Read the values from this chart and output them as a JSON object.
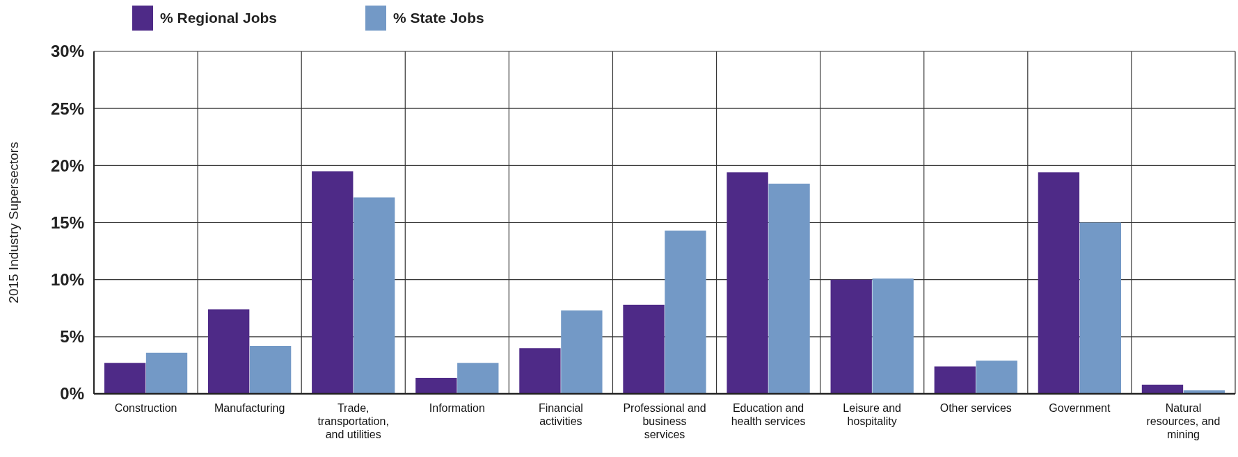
{
  "chart_data": {
    "type": "bar",
    "ylabel": "2015 Industry Supersectors",
    "categories": [
      "Construction",
      "Manufacturing",
      "Trade, transportation, and utilities",
      "Information",
      "Financial activities",
      "Professional and business services",
      "Education and health services",
      "Leisure and hospitality",
      "Other services",
      "Government",
      "Natural resources, and mining"
    ],
    "series": [
      {
        "name": "% Regional Jobs",
        "color": "#4e2a87",
        "values": [
          2.7,
          7.4,
          19.5,
          1.4,
          4.0,
          7.8,
          19.4,
          10.0,
          2.4,
          19.4,
          0.8
        ]
      },
      {
        "name": "% State Jobs",
        "color": "#7399c6",
        "values": [
          3.6,
          4.2,
          17.2,
          2.7,
          7.3,
          14.3,
          18.4,
          10.1,
          2.9,
          15.0,
          0.3
        ]
      }
    ],
    "ylim": [
      0,
      30
    ],
    "yticks": [
      {
        "value": 0,
        "label": "0%"
      },
      {
        "value": 5,
        "label": "5%"
      },
      {
        "value": 10,
        "label": "10%"
      },
      {
        "value": 15,
        "label": "15%"
      },
      {
        "value": 20,
        "label": "20%"
      },
      {
        "value": 25,
        "label": "25%"
      },
      {
        "value": 30,
        "label": "30%"
      }
    ],
    "grid": true,
    "legend": "top left"
  }
}
